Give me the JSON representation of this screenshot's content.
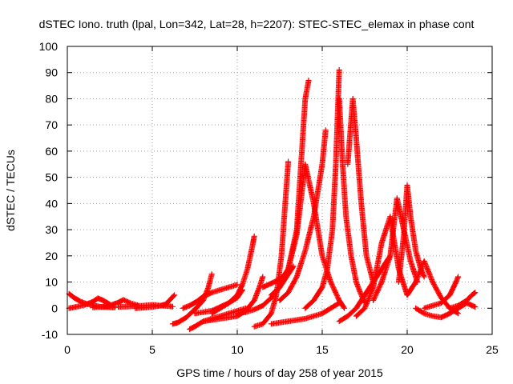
{
  "chart_data": {
    "type": "scatter",
    "title": "dSTEC Iono. truth (lpal, Lon=342, Lat=28, h=2207): STEC-STEC_elemax in phase cont",
    "xlabel": "GPS time / hours of day 258 of year 2015",
    "ylabel": "dSTEC  / TECUs",
    "xlim": [
      0,
      25
    ],
    "ylim": [
      -10,
      100
    ],
    "xticks": [
      0,
      5,
      10,
      15,
      20,
      25
    ],
    "yticks": [
      -10,
      0,
      10,
      20,
      30,
      40,
      50,
      60,
      70,
      80,
      90,
      100
    ],
    "xtick_labels": [
      "0",
      "5",
      "10",
      "15",
      "20",
      "25"
    ],
    "ytick_labels": [
      "-10",
      "0",
      "10",
      "20",
      "30",
      "40",
      "50",
      "60",
      "70",
      "80",
      "90",
      "100"
    ],
    "grid": true,
    "marker": "plus",
    "color": "#ff0000",
    "series": [
      {
        "x": [
          0.1,
          0.4,
          0.8,
          1.2,
          1.6,
          2.0,
          2.4,
          2.8
        ],
        "y": [
          5.5,
          4.0,
          2.5,
          1.5,
          1.0,
          0.5,
          0.4,
          0.3
        ]
      },
      {
        "x": [
          0.1,
          0.5,
          1.0,
          1.5,
          1.8,
          2.1,
          2.5
        ],
        "y": [
          0.0,
          0.5,
          1.2,
          2.5,
          3.8,
          3.0,
          1.5
        ]
      },
      {
        "x": [
          1.5,
          2.0,
          2.5,
          3.0,
          3.3,
          3.7,
          4.2
        ],
        "y": [
          0.3,
          0.5,
          1.0,
          2.2,
          3.2,
          2.0,
          1.0
        ]
      },
      {
        "x": [
          3.0,
          3.5,
          4.0,
          4.5,
          5.0,
          5.5,
          6.0,
          6.2
        ],
        "y": [
          0.5,
          0.6,
          0.8,
          1.0,
          1.3,
          1.0,
          0.8,
          0.6
        ]
      },
      {
        "x": [
          4.0,
          4.5,
          5.0,
          5.5,
          5.8,
          6.0,
          6.3
        ],
        "y": [
          0.0,
          0.2,
          0.5,
          1.0,
          1.5,
          3.0,
          5.0
        ]
      },
      {
        "x": [
          6.2,
          6.5,
          7.0,
          7.5,
          8.0,
          8.3,
          8.5
        ],
        "y": [
          -6.0,
          -5.5,
          -3.5,
          -0.5,
          3.0,
          8.0,
          13.0
        ]
      },
      {
        "x": [
          6.8,
          7.2,
          7.6,
          8.0,
          8.5,
          9.0,
          9.5,
          10.0
        ],
        "y": [
          0.0,
          1.0,
          2.5,
          4.5,
          6.0,
          7.0,
          8.0,
          9.0
        ]
      },
      {
        "x": [
          7.2,
          7.5,
          8.0,
          8.5,
          9.0,
          9.5,
          10.0,
          10.5
        ],
        "y": [
          -8.0,
          -7.0,
          -5.0,
          -4.0,
          -3.0,
          -2.0,
          -1.0,
          0.0
        ]
      },
      {
        "x": [
          7.5,
          8.0,
          8.5,
          9.0,
          9.5,
          10.0,
          10.3
        ],
        "y": [
          -2.0,
          -1.5,
          -1.0,
          0.5,
          2.0,
          4.0,
          7.0
        ]
      },
      {
        "x": [
          8.5,
          9.0,
          9.5,
          10.0,
          10.3,
          10.6,
          10.9,
          11.0
        ],
        "y": [
          -2.0,
          0.0,
          2.0,
          5.0,
          9.0,
          15.0,
          24.0,
          27.5
        ]
      },
      {
        "x": [
          8.0,
          9.0,
          10.0,
          10.5,
          11.0,
          11.3,
          11.5
        ],
        "y": [
          -5.0,
          -4.0,
          -3.0,
          -1.0,
          3.0,
          8.0,
          12.0
        ]
      },
      {
        "x": [
          10.0,
          10.5,
          11.0,
          11.5,
          12.0,
          12.5,
          13.0,
          13.3
        ],
        "y": [
          -2.0,
          -1.5,
          -0.5,
          1.0,
          4.0,
          8.0,
          13.0,
          16.0
        ]
      },
      {
        "x": [
          11.0,
          11.5,
          12.0,
          12.3,
          12.6,
          12.8,
          13.0
        ],
        "y": [
          -7.0,
          -6.0,
          -2.0,
          5.0,
          20.0,
          38.0,
          56.0
        ]
      },
      {
        "x": [
          11.5,
          12.0,
          12.5,
          12.8,
          13.0
        ],
        "y": [
          8.0,
          9.5,
          11.0,
          13.0,
          15.0
        ]
      },
      {
        "x": [
          12.0,
          12.5,
          13.0,
          13.5,
          13.8,
          14.0,
          14.2
        ],
        "y": [
          5.0,
          8.0,
          15.0,
          30.0,
          60.0,
          80.0,
          87.0
        ]
      },
      {
        "x": [
          12.5,
          13.0,
          13.5,
          14.0,
          14.5,
          15.0,
          15.2
        ],
        "y": [
          3.0,
          6.0,
          12.0,
          22.0,
          35.0,
          55.0,
          68.0
        ]
      },
      {
        "x": [
          12.0,
          13.0,
          14.0,
          14.5,
          15.0,
          15.5,
          16.0
        ],
        "y": [
          -6.0,
          -5.0,
          -4.0,
          -3.0,
          -2.0,
          0.0,
          2.0
        ]
      },
      {
        "x": [
          13.0,
          13.5,
          14.0,
          14.5,
          15.0,
          15.5,
          16.0,
          16.3
        ],
        "y": [
          15.0,
          28.0,
          55.0,
          40.0,
          20.0,
          10.0,
          3.0,
          0.0
        ]
      },
      {
        "x": [
          14.0,
          14.5,
          15.0,
          15.3,
          15.6,
          15.8,
          16.0
        ],
        "y": [
          0.0,
          3.0,
          8.0,
          15.0,
          30.0,
          55.0,
          91.0
        ]
      },
      {
        "x": [
          16.0,
          16.2,
          16.4,
          16.7,
          17.0,
          17.3,
          17.5
        ],
        "y": [
          80.0,
          55.0,
          35.0,
          20.0,
          10.0,
          5.0,
          2.0
        ]
      },
      {
        "x": [
          16.5,
          16.8,
          17.0,
          17.3,
          17.6,
          18.0
        ],
        "y": [
          55.0,
          80.0,
          65.0,
          40.0,
          20.0,
          10.0
        ]
      },
      {
        "x": [
          16.0,
          16.5,
          17.0,
          17.5,
          18.0,
          18.5,
          19.0
        ],
        "y": [
          -5.0,
          -3.0,
          0.0,
          5.0,
          10.0,
          15.0,
          20.0
        ]
      },
      {
        "x": [
          17.0,
          17.5,
          18.0,
          18.5,
          19.0,
          19.5,
          20.0
        ],
        "y": [
          -3.0,
          0.0,
          8.0,
          25.0,
          35.0,
          15.0,
          5.0
        ]
      },
      {
        "x": [
          18.0,
          18.5,
          19.0,
          19.4,
          19.8,
          20.2,
          20.6
        ],
        "y": [
          3.0,
          10.0,
          20.0,
          42.0,
          30.0,
          18.0,
          10.0
        ]
      },
      {
        "x": [
          19.5,
          19.8,
          20.0,
          20.2,
          20.5,
          20.8,
          21.0
        ],
        "y": [
          10.0,
          28.0,
          47.0,
          35.0,
          22.0,
          15.0,
          12.0
        ]
      },
      {
        "x": [
          20.0,
          20.5,
          21.0,
          21.5,
          22.0,
          22.5,
          23.0
        ],
        "y": [
          5.0,
          10.0,
          18.0,
          10.0,
          4.0,
          0.0,
          -2.0
        ]
      },
      {
        "x": [
          20.5,
          21.0,
          21.5,
          22.0,
          22.5,
          23.0,
          23.5,
          24.0
        ],
        "y": [
          0.0,
          -2.0,
          -3.0,
          -3.5,
          -2.0,
          0.0,
          2.0,
          0.5
        ]
      },
      {
        "x": [
          21.0,
          21.5,
          22.0,
          22.5,
          22.8,
          23.0
        ],
        "y": [
          0.0,
          1.0,
          2.0,
          5.0,
          9.0,
          12.0
        ]
      },
      {
        "x": [
          22.5,
          23.0,
          23.5,
          23.8,
          24.0
        ],
        "y": [
          0.0,
          1.0,
          3.0,
          5.0,
          6.0
        ]
      }
    ]
  }
}
